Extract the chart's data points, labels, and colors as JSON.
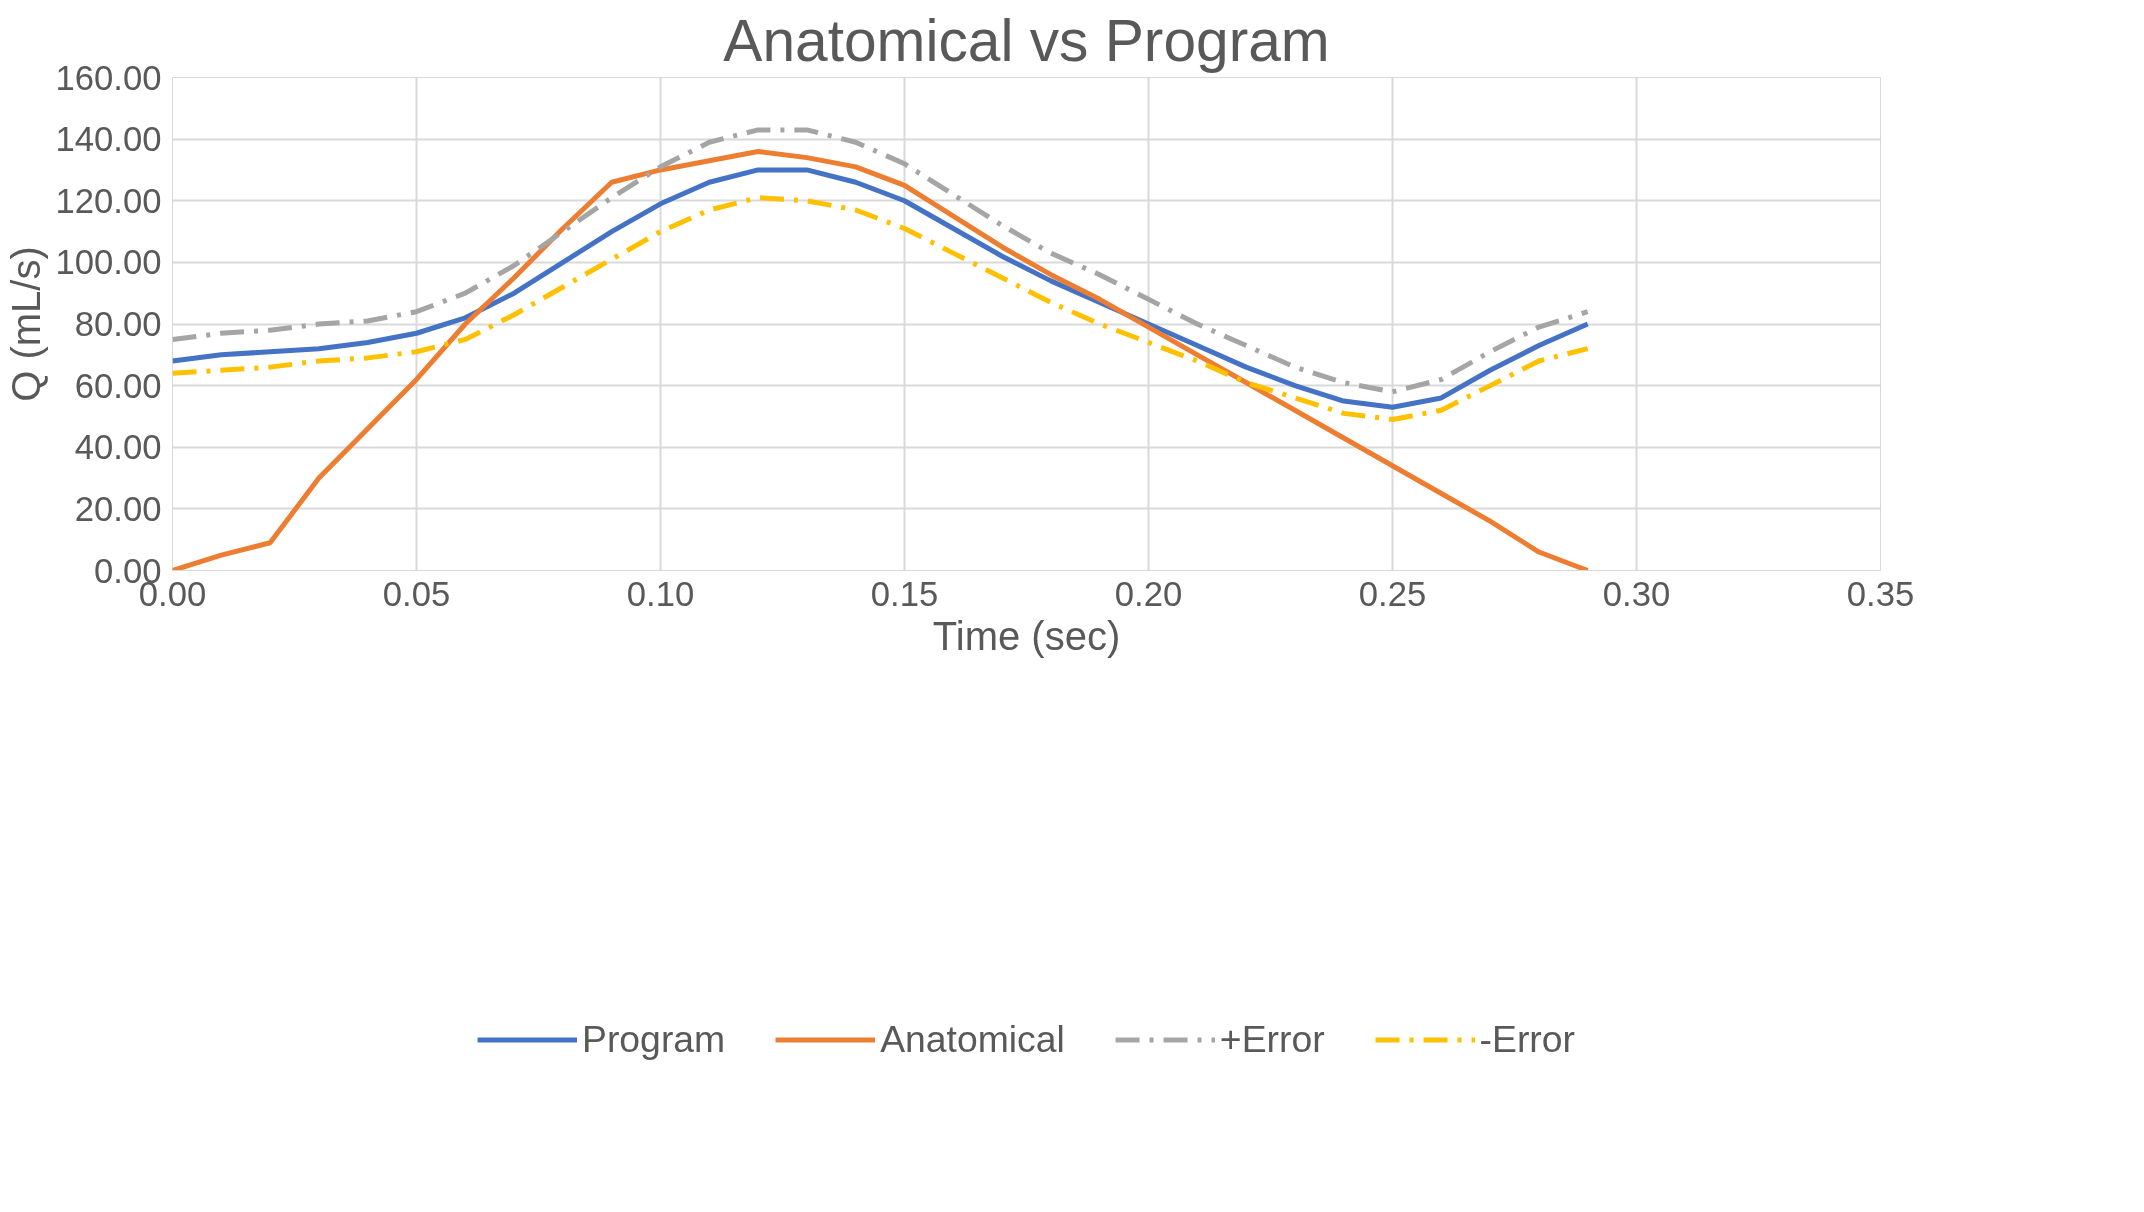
{
  "chart_data": {
    "type": "line",
    "title": "Anatomical vs Program",
    "xlabel": "Time (sec)",
    "ylabel": "Q (mL/s)",
    "x": [
      0,
      0.01,
      0.02,
      0.03,
      0.04,
      0.05,
      0.06,
      0.07,
      0.08,
      0.09,
      0.1,
      0.11,
      0.12,
      0.13,
      0.14,
      0.15,
      0.16,
      0.17,
      0.18,
      0.19,
      0.2,
      0.21,
      0.22,
      0.23,
      0.24,
      0.25,
      0.26,
      0.27,
      0.28,
      0.29
    ],
    "series": [
      {
        "name": "Program",
        "color": "#4472c4",
        "line_style": "solid",
        "values": [
          68,
          70,
          71,
          72,
          74,
          77,
          82,
          90,
          100,
          110,
          119,
          126,
          130,
          130,
          126,
          120,
          111,
          102,
          94,
          87,
          80,
          73,
          66,
          60,
          55,
          53,
          56,
          65,
          73,
          80
        ]
      },
      {
        "name": "Anatomical",
        "color": "#ed7d31",
        "line_style": "solid",
        "values": [
          0,
          5,
          9,
          30,
          46,
          62,
          80,
          95,
          111,
          126,
          130,
          133,
          136,
          134,
          131,
          125,
          115,
          105,
          96,
          88,
          79,
          70,
          61,
          52,
          43,
          34,
          25,
          16,
          6,
          0
        ]
      },
      {
        "name": "+Error",
        "color": "#a5a5a5",
        "line_style": "dashed",
        "values": [
          75,
          77,
          78,
          80,
          81,
          84,
          90,
          99,
          110,
          121,
          131,
          139,
          143,
          143,
          139,
          132,
          122,
          112,
          103,
          96,
          88,
          80,
          73,
          66,
          61,
          58,
          62,
          71,
          79,
          84
        ]
      },
      {
        "name": "-Error",
        "color": "#ffc000",
        "line_style": "dashed",
        "values": [
          64,
          65,
          66,
          68,
          69,
          71,
          75,
          83,
          92,
          101,
          110,
          117,
          121,
          120,
          117,
          111,
          103,
          95,
          87,
          80,
          74,
          68,
          61,
          56,
          51,
          49,
          52,
          60,
          68,
          72
        ]
      }
    ],
    "xlim": [
      0,
      0.35
    ],
    "ylim": [
      0,
      160
    ],
    "xticks": [
      {
        "value": 0,
        "label": "0.00"
      },
      {
        "value": 0.05,
        "label": "0.05"
      },
      {
        "value": 0.1,
        "label": "0.10"
      },
      {
        "value": 0.15,
        "label": "0.15"
      },
      {
        "value": 0.2,
        "label": "0.20"
      },
      {
        "value": 0.25,
        "label": "0.25"
      },
      {
        "value": 0.3,
        "label": "0.30"
      },
      {
        "value": 0.35,
        "label": "0.35"
      }
    ],
    "yticks": [
      {
        "value": 0,
        "label": "0.00"
      },
      {
        "value": 20,
        "label": "20.00"
      },
      {
        "value": 40,
        "label": "40.00"
      },
      {
        "value": 60,
        "label": "60.00"
      },
      {
        "value": 80,
        "label": "80.00"
      },
      {
        "value": 100,
        "label": "100.00"
      },
      {
        "value": 120,
        "label": "120.00"
      },
      {
        "value": 140,
        "label": "140.00"
      },
      {
        "value": 160,
        "label": "160.00"
      }
    ],
    "grid": true,
    "legend": "bottom",
    "marker": "none"
  }
}
